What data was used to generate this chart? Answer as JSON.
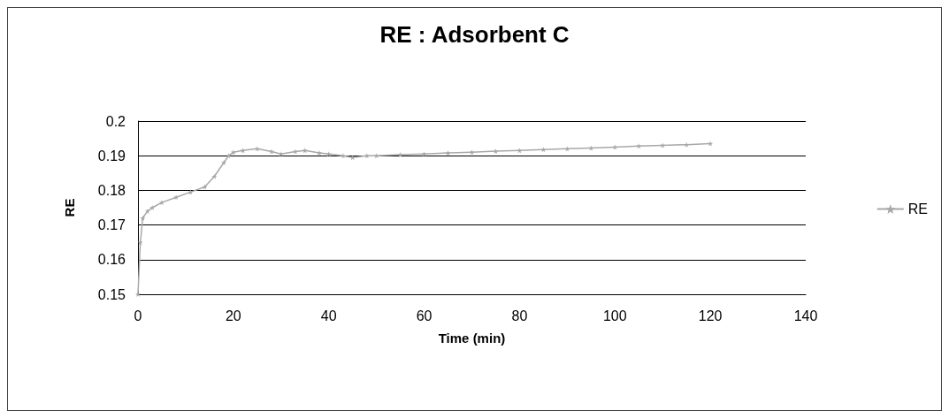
{
  "chart_data": {
    "type": "line",
    "title": "RE : Adsorbent C",
    "xlabel": "Time (min)",
    "ylabel": "RE",
    "xlim": [
      0,
      140
    ],
    "xticks": [
      0,
      20,
      40,
      60,
      80,
      100,
      120,
      140
    ],
    "ylim": [
      0.15,
      0.2
    ],
    "yticks": [
      0.15,
      0.16,
      0.17,
      0.18,
      0.19,
      0.2
    ],
    "grid": "y",
    "legend": "right",
    "marker": "star",
    "line_style": "solid",
    "series": [
      {
        "name": "RE",
        "color": "#a8a8a8",
        "x": [
          0,
          0.5,
          1,
          2,
          3,
          5,
          8,
          11,
          14,
          16,
          18,
          19,
          20,
          22,
          25,
          28,
          30,
          33,
          35,
          38,
          40,
          43,
          45,
          48,
          50,
          55,
          60,
          65,
          70,
          75,
          80,
          85,
          90,
          95,
          100,
          105,
          110,
          115,
          120
        ],
        "values": [
          0.15,
          0.165,
          0.172,
          0.174,
          0.175,
          0.1765,
          0.178,
          0.1795,
          0.181,
          0.184,
          0.188,
          0.19,
          0.191,
          0.1915,
          0.192,
          0.1912,
          0.1905,
          0.1912,
          0.1915,
          0.1908,
          0.1905,
          0.19,
          0.1895,
          0.19,
          0.19,
          0.1903,
          0.1905,
          0.1908,
          0.191,
          0.1913,
          0.1915,
          0.1918,
          0.192,
          0.1922,
          0.1925,
          0.1928,
          0.193,
          0.1932,
          0.1935
        ]
      }
    ]
  }
}
